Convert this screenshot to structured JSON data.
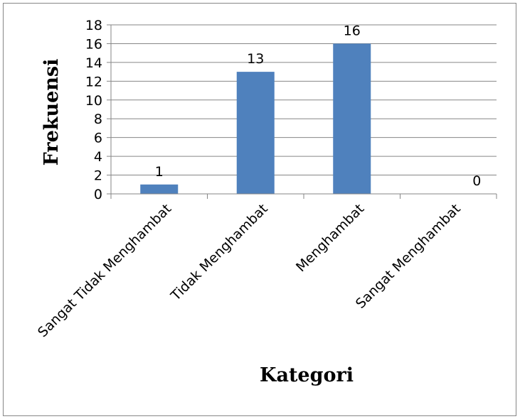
{
  "chart_data": {
    "type": "bar",
    "categories": [
      "Sangat Tidak Menghambat",
      "Tidak Menghambat",
      "Menghambat",
      "Sangat Menghambat"
    ],
    "values": [
      1,
      13,
      16,
      0
    ],
    "data_labels": [
      "1",
      "13",
      "16",
      "0"
    ],
    "xlabel": "Kategori",
    "ylabel": "Frekuensi",
    "ylim": [
      0,
      18
    ],
    "y_ticks": [
      0,
      2,
      4,
      6,
      8,
      10,
      12,
      14,
      16,
      18
    ],
    "grid": true,
    "legend": "none",
    "colors": {
      "bar": "#4f81bd",
      "grid": "#868686",
      "axis": "#868686",
      "border": "#868686"
    }
  }
}
